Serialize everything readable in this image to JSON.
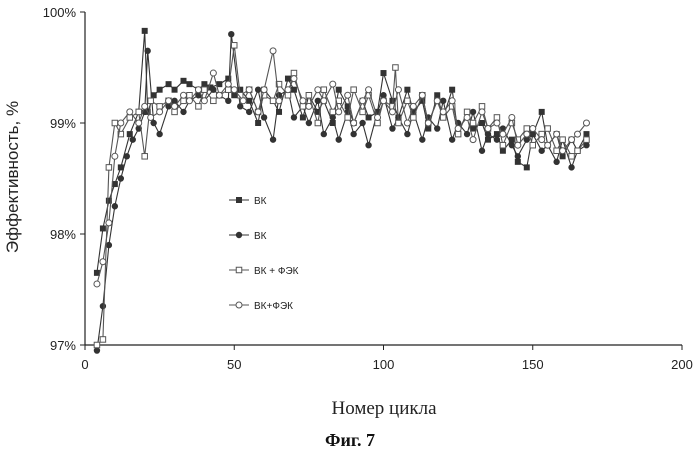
{
  "caption": "Фиг. 7",
  "chart_data": {
    "type": "line",
    "xlabel": "Номер цикла",
    "ylabel": "Эффективность, %",
    "xlim": [
      0,
      200
    ],
    "ylim": [
      97,
      100
    ],
    "x_ticks": [
      "0",
      "50",
      "100",
      "150",
      "200"
    ],
    "y_ticks": [
      "97%",
      "98%",
      "99%",
      "100%"
    ],
    "grid": false,
    "legend_position": "center-left",
    "series": [
      {
        "name": "ВК",
        "marker": "square-filled",
        "color": "#333333",
        "x": [
          4,
          6,
          8,
          10,
          12,
          15,
          18,
          20,
          21,
          23,
          25,
          28,
          30,
          33,
          35,
          38,
          40,
          42,
          45,
          48,
          50,
          52,
          55,
          58,
          60,
          63,
          65,
          68,
          70,
          73,
          75,
          78,
          80,
          83,
          85,
          88,
          90,
          93,
          95,
          98,
          100,
          103,
          105,
          108,
          110,
          113,
          115,
          118,
          120,
          123,
          125,
          128,
          130,
          133,
          135,
          138,
          140,
          143,
          145,
          148,
          150,
          153,
          155,
          158,
          160,
          163,
          165,
          168
        ],
        "y": [
          97.65,
          98.05,
          98.3,
          98.45,
          98.6,
          98.9,
          99.1,
          99.83,
          99.1,
          99.25,
          99.3,
          99.35,
          99.3,
          99.38,
          99.35,
          99.3,
          99.35,
          99.32,
          99.35,
          99.4,
          99.25,
          99.3,
          99.2,
          99.0,
          99.3,
          99.2,
          99.1,
          99.4,
          99.3,
          99.05,
          99.25,
          99.1,
          99.2,
          99.0,
          99.3,
          99.15,
          99.0,
          99.2,
          99.05,
          99.1,
          99.45,
          99.2,
          99.05,
          99.3,
          99.1,
          99.2,
          98.95,
          99.25,
          99.05,
          99.3,
          98.9,
          99.1,
          98.95,
          99.0,
          98.85,
          98.9,
          98.75,
          98.85,
          98.65,
          98.6,
          98.9,
          99.1,
          98.8,
          98.9,
          98.7,
          98.85,
          98.75,
          98.9
        ]
      },
      {
        "name": "ВК",
        "marker": "circle-filled",
        "color": "#333333",
        "x": [
          4,
          6,
          8,
          10,
          12,
          14,
          16,
          18,
          20,
          21,
          23,
          25,
          28,
          30,
          33,
          35,
          38,
          40,
          43,
          45,
          48,
          49,
          52,
          55,
          58,
          60,
          63,
          65,
          68,
          70,
          73,
          75,
          78,
          80,
          83,
          85,
          88,
          90,
          93,
          95,
          98,
          100,
          103,
          105,
          108,
          110,
          113,
          115,
          118,
          120,
          123,
          125,
          128,
          130,
          133,
          135,
          138,
          140,
          143,
          145,
          148,
          150,
          153,
          155,
          158,
          160,
          163,
          165,
          168
        ],
        "y": [
          96.95,
          97.35,
          97.9,
          98.25,
          98.5,
          98.7,
          98.85,
          98.95,
          99.1,
          99.65,
          99.0,
          98.9,
          99.15,
          99.2,
          99.1,
          99.2,
          99.25,
          99.2,
          99.3,
          99.25,
          99.2,
          99.8,
          99.15,
          99.1,
          99.3,
          99.05,
          98.85,
          99.25,
          99.3,
          99.05,
          99.15,
          99.0,
          99.2,
          98.9,
          99.05,
          98.85,
          99.1,
          98.9,
          99.0,
          98.8,
          99.1,
          99.25,
          98.95,
          99.05,
          98.9,
          99.1,
          98.85,
          99.05,
          98.95,
          99.2,
          98.85,
          99.0,
          98.9,
          99.1,
          98.75,
          98.9,
          98.85,
          98.95,
          98.8,
          98.7,
          98.85,
          98.9,
          98.75,
          98.8,
          98.65,
          98.85,
          98.6,
          98.75,
          98.8
        ]
      },
      {
        "name": "ВК + ФЭК",
        "marker": "square-open",
        "color": "#555555",
        "x": [
          4,
          6,
          8,
          10,
          12,
          15,
          18,
          20,
          22,
          25,
          28,
          30,
          33,
          35,
          38,
          40,
          43,
          45,
          48,
          50,
          52,
          55,
          58,
          60,
          63,
          65,
          68,
          70,
          73,
          75,
          78,
          80,
          83,
          85,
          88,
          90,
          93,
          95,
          98,
          100,
          103,
          104,
          105,
          108,
          110,
          113,
          115,
          118,
          120,
          123,
          125,
          128,
          130,
          133,
          135,
          138,
          140,
          143,
          145,
          148,
          150,
          153,
          155,
          158,
          160,
          163,
          165,
          168
        ],
        "y": [
          97.0,
          97.05,
          98.6,
          99.0,
          98.9,
          99.05,
          99.1,
          98.7,
          99.2,
          99.15,
          99.2,
          99.1,
          99.2,
          99.25,
          99.15,
          99.3,
          99.2,
          99.25,
          99.3,
          99.7,
          99.25,
          99.3,
          99.1,
          99.25,
          99.2,
          99.35,
          99.25,
          99.45,
          99.15,
          99.25,
          99.0,
          99.3,
          99.1,
          99.2,
          99.05,
          99.3,
          99.1,
          99.25,
          99.0,
          99.2,
          99.15,
          99.5,
          99.0,
          99.2,
          99.05,
          99.25,
          99.0,
          99.2,
          99.05,
          99.15,
          98.9,
          99.1,
          99.0,
          99.15,
          98.95,
          99.05,
          98.8,
          99.0,
          98.85,
          98.95,
          98.8,
          98.9,
          98.95,
          98.75,
          98.85,
          98.7,
          98.75,
          98.85
        ]
      },
      {
        "name": "ВК+ФЭК",
        "marker": "circle-open",
        "color": "#555555",
        "x": [
          4,
          6,
          8,
          10,
          12,
          15,
          18,
          20,
          22,
          25,
          28,
          30,
          33,
          35,
          38,
          40,
          43,
          45,
          48,
          50,
          53,
          55,
          58,
          60,
          63,
          65,
          68,
          70,
          73,
          75,
          78,
          80,
          83,
          85,
          88,
          90,
          93,
          95,
          98,
          100,
          103,
          105,
          108,
          110,
          113,
          115,
          118,
          120,
          123,
          125,
          128,
          130,
          133,
          135,
          138,
          140,
          143,
          145,
          148,
          150,
          153,
          155,
          158,
          160,
          163,
          165,
          168
        ],
        "y": [
          97.55,
          97.75,
          98.1,
          98.7,
          99.0,
          99.1,
          99.0,
          99.15,
          99.05,
          99.1,
          99.2,
          99.15,
          99.25,
          99.2,
          99.3,
          99.2,
          99.45,
          99.25,
          99.35,
          99.3,
          99.2,
          99.3,
          99.1,
          99.3,
          99.65,
          99.2,
          99.3,
          99.4,
          99.2,
          99.15,
          99.3,
          99.2,
          99.35,
          99.1,
          99.25,
          99.0,
          99.2,
          99.3,
          99.05,
          99.2,
          99.1,
          99.3,
          99.0,
          99.15,
          99.25,
          99.0,
          99.2,
          99.1,
          99.2,
          98.95,
          99.05,
          98.85,
          99.1,
          98.95,
          99.0,
          98.9,
          99.05,
          98.8,
          98.9,
          98.95,
          98.85,
          98.8,
          98.9,
          98.75,
          98.85,
          98.9,
          99.0
        ]
      }
    ]
  }
}
